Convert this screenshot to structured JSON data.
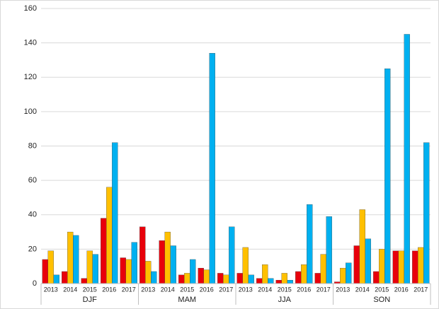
{
  "chart_data": {
    "type": "bar",
    "categories": [
      "2013",
      "2014",
      "2015",
      "2016",
      "2017",
      "2013",
      "2014",
      "2015",
      "2016",
      "2017",
      "2013",
      "2014",
      "2015",
      "2016",
      "2017",
      "2013",
      "2014",
      "2015",
      "2016",
      "2017"
    ],
    "groups": [
      "DJF",
      "MAM",
      "JJA",
      "SON"
    ],
    "series": [
      {
        "color": "#e8000b",
        "values": [
          14,
          7,
          3,
          38,
          15,
          33,
          25,
          5,
          9,
          6,
          6,
          3,
          2,
          7,
          6,
          1,
          22,
          7,
          19,
          19
        ]
      },
      {
        "color": "#ffc000",
        "values": [
          19,
          30,
          19,
          56,
          14,
          13,
          30,
          6,
          8,
          5,
          21,
          11,
          6,
          11,
          17,
          9,
          43,
          20,
          19,
          21
        ]
      },
      {
        "color": "#00b0f0",
        "values": [
          5,
          28,
          17,
          82,
          24,
          7,
          22,
          14,
          134,
          33,
          5,
          3,
          2,
          46,
          39,
          12,
          26,
          125,
          145,
          82
        ]
      }
    ],
    "ylim": [
      0,
      160
    ],
    "yticks": [
      0,
      20,
      40,
      60,
      80,
      100,
      120,
      140,
      160
    ],
    "grid": true
  }
}
